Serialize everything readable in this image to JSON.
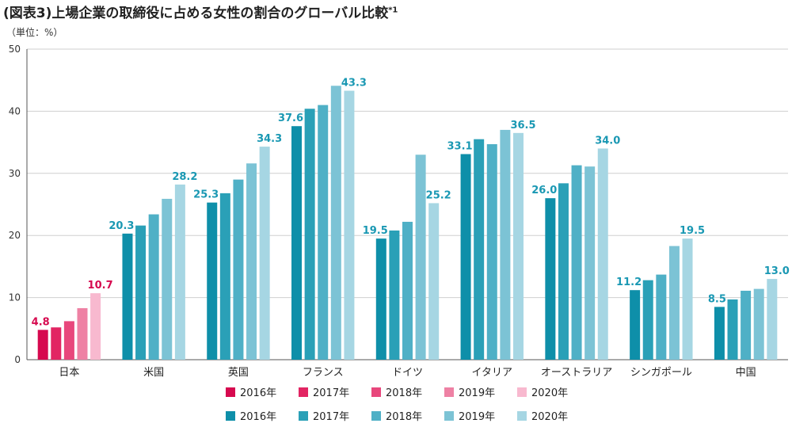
{
  "title": "(図表3)上場企業の取締役に占める女性の割合のグローバル比較",
  "title_note": "*1",
  "unit_label": "（単位：%）",
  "colors": {
    "japan": [
      "#d6094f",
      "#e22563",
      "#e8477c",
      "#ee81a4",
      "#f8b9cf"
    ],
    "others": [
      "#0e8fa9",
      "#2aa0b7",
      "#4fb0c6",
      "#7cc3d5",
      "#a6d6e3"
    ]
  },
  "chart_data": {
    "type": "bar",
    "ylabel": "（単位：%）",
    "ylim": [
      0,
      50
    ],
    "yticks": [
      0,
      10,
      20,
      30,
      40,
      50
    ],
    "categories": [
      "日本",
      "米国",
      "英国",
      "フランス",
      "ドイツ",
      "イタリア",
      "オーストラリア",
      "シンガポール",
      "中国"
    ],
    "series": [
      {
        "name": "2016年",
        "values": [
          4.8,
          20.3,
          25.3,
          37.6,
          19.5,
          33.1,
          26.0,
          11.2,
          8.5
        ]
      },
      {
        "name": "2017年",
        "values": [
          5.2,
          21.6,
          26.8,
          40.4,
          20.8,
          35.5,
          28.4,
          12.8,
          9.7
        ]
      },
      {
        "name": "2018年",
        "values": [
          6.2,
          23.4,
          29.0,
          41.0,
          22.2,
          34.7,
          31.3,
          13.7,
          11.1
        ]
      },
      {
        "name": "2019年",
        "values": [
          8.3,
          25.9,
          31.6,
          44.1,
          33.0,
          37.0,
          31.1,
          18.3,
          11.4
        ]
      },
      {
        "name": "2020年",
        "values": [
          10.7,
          28.2,
          34.3,
          43.3,
          25.2,
          36.5,
          34.0,
          19.5,
          13.0
        ]
      }
    ],
    "data_labels": [
      {
        "category_index": 0,
        "series_index": 0,
        "text": "4.8"
      },
      {
        "category_index": 0,
        "series_index": 4,
        "text": "10.7"
      },
      {
        "category_index": 1,
        "series_index": 0,
        "text": "20.3"
      },
      {
        "category_index": 1,
        "series_index": 4,
        "text": "28.2"
      },
      {
        "category_index": 2,
        "series_index": 0,
        "text": "25.3"
      },
      {
        "category_index": 2,
        "series_index": 4,
        "text": "34.3"
      },
      {
        "category_index": 3,
        "series_index": 0,
        "text": "37.6"
      },
      {
        "category_index": 3,
        "series_index": 4,
        "text": "43.3"
      },
      {
        "category_index": 4,
        "series_index": 0,
        "text": "19.5"
      },
      {
        "category_index": 4,
        "series_index": 4,
        "text": "25.2"
      },
      {
        "category_index": 5,
        "series_index": 0,
        "text": "33.1"
      },
      {
        "category_index": 5,
        "series_index": 4,
        "text": "36.5"
      },
      {
        "category_index": 6,
        "series_index": 0,
        "text": "26.0"
      },
      {
        "category_index": 6,
        "series_index": 4,
        "text": "34.0"
      },
      {
        "category_index": 7,
        "series_index": 0,
        "text": "11.2"
      },
      {
        "category_index": 7,
        "series_index": 4,
        "text": "19.5"
      },
      {
        "category_index": 8,
        "series_index": 0,
        "text": "8.5"
      },
      {
        "category_index": 8,
        "series_index": 4,
        "text": "13.0"
      }
    ],
    "grid": true,
    "legend": [
      {
        "group": "japan",
        "labels": [
          "2016年",
          "2017年",
          "2018年",
          "2019年",
          "2020年"
        ]
      },
      {
        "group": "others",
        "labels": [
          "2016年",
          "2017年",
          "2018年",
          "2019年",
          "2020年"
        ]
      }
    ],
    "legend_position": "bottom"
  }
}
